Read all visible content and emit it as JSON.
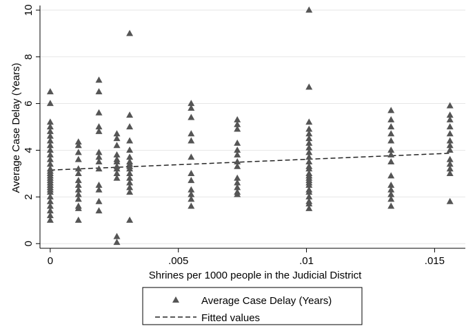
{
  "chart_data": {
    "type": "scatter",
    "xlabel": "Shrines per 1000 people in the Judicial District",
    "ylabel": "Average Case Delay (Years)",
    "xlim": [
      -0.0004,
      0.0162
    ],
    "ylim": [
      -0.2,
      10.2
    ],
    "x_ticks": [
      0,
      0.005,
      0.01,
      0.015
    ],
    "x_tick_labels": [
      "0",
      ".005",
      ".01",
      ".015"
    ],
    "y_ticks": [
      0,
      2,
      4,
      6,
      8,
      10
    ],
    "y_tick_labels": [
      "0",
      "2",
      "4",
      "6",
      "8",
      "10"
    ],
    "grid": "horizontal",
    "legend_placement": "bottom",
    "colors": {
      "marker": "#555555",
      "fit_line": "#222222",
      "grid": "#e6e6e6"
    },
    "series": [
      {
        "name": "Average Case Delay (Years)",
        "marker": "triangle",
        "points": [
          [
            0,
            6.5
          ],
          [
            0,
            6.0
          ],
          [
            0,
            5.2
          ],
          [
            0,
            5.0
          ],
          [
            0,
            4.8
          ],
          [
            0,
            4.6
          ],
          [
            0,
            4.4
          ],
          [
            0,
            4.2
          ],
          [
            0,
            4.0
          ],
          [
            0,
            3.8
          ],
          [
            0,
            3.6
          ],
          [
            0,
            3.4
          ],
          [
            0,
            3.2
          ],
          [
            0,
            3.1
          ],
          [
            0,
            3.0
          ],
          [
            0,
            2.9
          ],
          [
            0,
            2.8
          ],
          [
            0,
            2.7
          ],
          [
            0,
            2.6
          ],
          [
            0,
            2.5
          ],
          [
            0,
            2.4
          ],
          [
            0,
            2.3
          ],
          [
            0,
            2.2
          ],
          [
            0,
            2.0
          ],
          [
            0,
            1.8
          ],
          [
            0,
            1.6
          ],
          [
            0,
            1.4
          ],
          [
            0,
            1.2
          ],
          [
            0,
            1.0
          ],
          [
            0.0011,
            4.35
          ],
          [
            0.0011,
            4.2
          ],
          [
            0.0011,
            3.9
          ],
          [
            0.0011,
            3.6
          ],
          [
            0.0011,
            3.2
          ],
          [
            0.0011,
            3.0
          ],
          [
            0.0011,
            2.7
          ],
          [
            0.0011,
            2.5
          ],
          [
            0.0011,
            2.3
          ],
          [
            0.0011,
            2.1
          ],
          [
            0.0011,
            1.9
          ],
          [
            0.0011,
            1.6
          ],
          [
            0.0011,
            1.5
          ],
          [
            0.0011,
            1.0
          ],
          [
            0.0019,
            7.0
          ],
          [
            0.0019,
            6.5
          ],
          [
            0.0019,
            5.6
          ],
          [
            0.0019,
            5.0
          ],
          [
            0.0019,
            4.8
          ],
          [
            0.0019,
            3.9
          ],
          [
            0.0019,
            3.7
          ],
          [
            0.0019,
            3.5
          ],
          [
            0.0019,
            3.2
          ],
          [
            0.0019,
            2.5
          ],
          [
            0.0019,
            2.3
          ],
          [
            0.0019,
            1.8
          ],
          [
            0.0019,
            1.4
          ],
          [
            0.0026,
            4.7
          ],
          [
            0.0026,
            4.5
          ],
          [
            0.0026,
            4.2
          ],
          [
            0.0026,
            3.8
          ],
          [
            0.0026,
            3.6
          ],
          [
            0.0026,
            3.5
          ],
          [
            0.0026,
            3.3
          ],
          [
            0.0026,
            3.2
          ],
          [
            0.0026,
            3.0
          ],
          [
            0.0026,
            2.8
          ],
          [
            0.0026,
            0.3
          ],
          [
            0.0026,
            0.05
          ],
          [
            0.0031,
            9.0
          ],
          [
            0.0031,
            5.5
          ],
          [
            0.0031,
            5.0
          ],
          [
            0.0031,
            4.4
          ],
          [
            0.0031,
            4.0
          ],
          [
            0.0031,
            3.7
          ],
          [
            0.0031,
            3.5
          ],
          [
            0.0031,
            3.4
          ],
          [
            0.0031,
            3.3
          ],
          [
            0.0031,
            3.2
          ],
          [
            0.0031,
            3.0
          ],
          [
            0.0031,
            2.8
          ],
          [
            0.0031,
            2.6
          ],
          [
            0.0031,
            2.4
          ],
          [
            0.0031,
            2.2
          ],
          [
            0.0031,
            1.0
          ],
          [
            0.0055,
            6.0
          ],
          [
            0.0055,
            5.8
          ],
          [
            0.0055,
            5.4
          ],
          [
            0.0055,
            4.7
          ],
          [
            0.0055,
            4.4
          ],
          [
            0.0055,
            3.7
          ],
          [
            0.0055,
            3.0
          ],
          [
            0.0055,
            2.7
          ],
          [
            0.0055,
            2.3
          ],
          [
            0.0055,
            2.1
          ],
          [
            0.0055,
            1.9
          ],
          [
            0.0055,
            1.6
          ],
          [
            0.0073,
            5.3
          ],
          [
            0.0073,
            5.1
          ],
          [
            0.0073,
            4.9
          ],
          [
            0.0073,
            4.3
          ],
          [
            0.0073,
            4.0
          ],
          [
            0.0073,
            3.8
          ],
          [
            0.0073,
            3.5
          ],
          [
            0.0073,
            3.3
          ],
          [
            0.0073,
            2.8
          ],
          [
            0.0073,
            2.6
          ],
          [
            0.0073,
            2.4
          ],
          [
            0.0073,
            2.2
          ],
          [
            0.0073,
            2.1
          ],
          [
            0.0101,
            10.0
          ],
          [
            0.0101,
            6.7
          ],
          [
            0.0101,
            5.2
          ],
          [
            0.0101,
            4.9
          ],
          [
            0.0101,
            4.7
          ],
          [
            0.0101,
            4.5
          ],
          [
            0.0101,
            4.3
          ],
          [
            0.0101,
            4.1
          ],
          [
            0.0101,
            3.9
          ],
          [
            0.0101,
            3.7
          ],
          [
            0.0101,
            3.5
          ],
          [
            0.0101,
            3.3
          ],
          [
            0.0101,
            3.2
          ],
          [
            0.0101,
            3.0
          ],
          [
            0.0101,
            2.9
          ],
          [
            0.0101,
            2.8
          ],
          [
            0.0101,
            2.7
          ],
          [
            0.0101,
            2.6
          ],
          [
            0.0101,
            2.5
          ],
          [
            0.0101,
            2.3
          ],
          [
            0.0101,
            2.2
          ],
          [
            0.0101,
            2.0
          ],
          [
            0.0101,
            1.8
          ],
          [
            0.0101,
            1.7
          ],
          [
            0.0101,
            1.5
          ],
          [
            0.0133,
            5.7
          ],
          [
            0.0133,
            5.3
          ],
          [
            0.0133,
            5.0
          ],
          [
            0.0133,
            4.7
          ],
          [
            0.0133,
            4.4
          ],
          [
            0.0133,
            4.0
          ],
          [
            0.0133,
            3.8
          ],
          [
            0.0133,
            3.5
          ],
          [
            0.0133,
            2.9
          ],
          [
            0.0133,
            2.5
          ],
          [
            0.0133,
            2.3
          ],
          [
            0.0133,
            2.1
          ],
          [
            0.0133,
            1.9
          ],
          [
            0.0133,
            1.6
          ],
          [
            0.0156,
            5.9
          ],
          [
            0.0156,
            5.5
          ],
          [
            0.0156,
            5.3
          ],
          [
            0.0156,
            5.0
          ],
          [
            0.0156,
            4.7
          ],
          [
            0.0156,
            4.4
          ],
          [
            0.0156,
            4.2
          ],
          [
            0.0156,
            4.0
          ],
          [
            0.0156,
            3.6
          ],
          [
            0.0156,
            3.4
          ],
          [
            0.0156,
            3.2
          ],
          [
            0.0156,
            3.0
          ],
          [
            0.0156,
            1.8
          ]
        ]
      },
      {
        "name": "Fitted values",
        "type": "line",
        "style": "dashed",
        "points": [
          [
            0,
            3.15
          ],
          [
            0.0156,
            3.87
          ]
        ]
      }
    ]
  }
}
